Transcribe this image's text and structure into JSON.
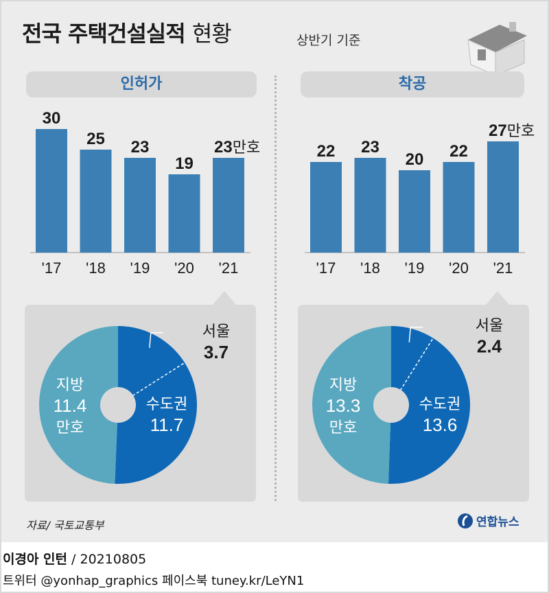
{
  "header": {
    "title_bold": "전국 주택건설실적",
    "title_light": "현황",
    "subtitle": "상반기 기준"
  },
  "footer": {
    "source": "자료/ 국토교통부",
    "logo": "연합뉴스",
    "author": "이경아 인턴",
    "date": "20210805",
    "social": "트위터 @yonhap_graphics  페이스북 tuney.kr/LeYN1"
  },
  "colors": {
    "bar": "#3b7fb5",
    "pie_capital": "#0e68b6",
    "pie_local": "#5aa8c0",
    "tag_text": "#2a6aa8"
  },
  "chart_data": [
    {
      "type": "bar",
      "title": "인허가",
      "categories": [
        "'17",
        "'18",
        "'19",
        "'20",
        "'21"
      ],
      "values": [
        30,
        25,
        23,
        19,
        23
      ],
      "value_labels": [
        "30",
        "25",
        "23",
        "19",
        "23"
      ],
      "unit": "만호",
      "ylim": [
        0,
        30
      ]
    },
    {
      "type": "bar",
      "title": "착공",
      "categories": [
        "'17",
        "'18",
        "'19",
        "'20",
        "'21"
      ],
      "values": [
        22,
        23,
        20,
        22,
        27
      ],
      "value_labels": [
        "22",
        "23",
        "20",
        "22",
        "27"
      ],
      "unit": "만호",
      "ylim": [
        0,
        30
      ]
    },
    {
      "type": "pie",
      "labels": [
        "수도권",
        "지방"
      ],
      "values": [
        11.7,
        11.4
      ],
      "value_labels": [
        "11.7",
        "11.4"
      ],
      "sublabel": {
        "name": "서울",
        "value": 3.7,
        "value_label": "3.7"
      },
      "unit": "만호"
    },
    {
      "type": "pie",
      "labels": [
        "수도권",
        "지방"
      ],
      "values": [
        13.6,
        13.3
      ],
      "value_labels": [
        "13.6",
        "13.3"
      ],
      "sublabel": {
        "name": "서울",
        "value": 2.4,
        "value_label": "2.4"
      },
      "unit": "만호"
    }
  ]
}
